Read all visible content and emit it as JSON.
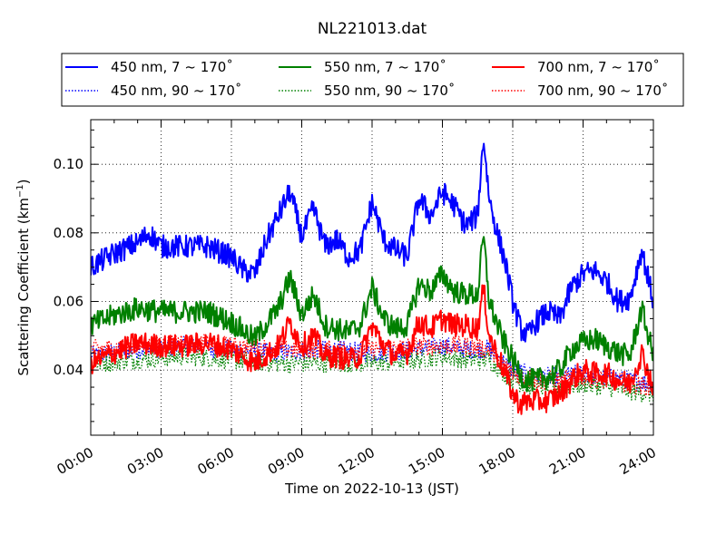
{
  "chart_data": {
    "type": "line",
    "title": "NL221013.dat",
    "xlabel": "Time on 2022-10-13 (JST)",
    "ylabel_main": "Scattering Coefficient (km",
    "ylabel_sup": "−1",
    "ylabel_close": ")",
    "xlim": [
      "00:00",
      "24:00"
    ],
    "ylim": [
      0.021,
      0.113
    ],
    "x_ticks": [
      "00:00",
      "03:00",
      "06:00",
      "09:00",
      "12:00",
      "15:00",
      "18:00",
      "21:00",
      "24:00"
    ],
    "y_ticks": [
      "0.04",
      "0.06",
      "0.08",
      "0.10"
    ],
    "grid": true,
    "legend_position": "top, above plot",
    "series": [
      {
        "name": "450 nm, 7 ~ 170˚",
        "color": "#0000ff",
        "style": "solid",
        "x": [
          "00:00",
          "01:00",
          "02:00",
          "02:30",
          "03:00",
          "04:00",
          "05:00",
          "06:00",
          "06:30",
          "07:00",
          "07:30",
          "08:00",
          "08:30",
          "09:00",
          "09:30",
          "10:00",
          "10:30",
          "11:00",
          "11:30",
          "12:00",
          "12:30",
          "13:00",
          "13:30",
          "14:00",
          "14:30",
          "15:00",
          "15:30",
          "16:00",
          "16:30",
          "16:45",
          "17:00",
          "17:20",
          "17:40",
          "18:00",
          "18:20",
          "18:40",
          "19:00",
          "19:30",
          "20:00",
          "20:30",
          "21:00",
          "21:30",
          "22:00",
          "22:30",
          "23:00",
          "23:30",
          "24:00"
        ],
        "values": [
          0.07,
          0.074,
          0.077,
          0.08,
          0.076,
          0.076,
          0.076,
          0.073,
          0.069,
          0.068,
          0.078,
          0.085,
          0.092,
          0.079,
          0.087,
          0.076,
          0.078,
          0.073,
          0.075,
          0.089,
          0.078,
          0.075,
          0.073,
          0.09,
          0.085,
          0.092,
          0.088,
          0.082,
          0.085,
          0.108,
          0.09,
          0.08,
          0.072,
          0.06,
          0.052,
          0.05,
          0.054,
          0.057,
          0.055,
          0.064,
          0.068,
          0.069,
          0.066,
          0.06,
          0.061,
          0.075,
          0.06
        ]
      },
      {
        "name": "450 nm, 90 ~ 170˚",
        "color": "#0000ff",
        "style": "dotted",
        "x": [
          "00:00",
          "02:00",
          "04:00",
          "06:00",
          "08:00",
          "10:00",
          "12:00",
          "14:00",
          "15:00",
          "16:00",
          "17:00",
          "18:00",
          "19:00",
          "20:00",
          "21:00",
          "22:00",
          "23:00",
          "24:00"
        ],
        "values": [
          0.044,
          0.046,
          0.047,
          0.046,
          0.045,
          0.046,
          0.045,
          0.046,
          0.047,
          0.046,
          0.046,
          0.04,
          0.038,
          0.038,
          0.039,
          0.038,
          0.037,
          0.036
        ]
      },
      {
        "name": "550 nm, 7 ~ 170˚",
        "color": "#008000",
        "style": "solid",
        "x": [
          "00:00",
          "01:00",
          "02:00",
          "03:00",
          "04:00",
          "05:00",
          "06:00",
          "07:00",
          "08:00",
          "08:30",
          "09:00",
          "09:30",
          "10:00",
          "10:30",
          "11:00",
          "11:30",
          "12:00",
          "12:30",
          "13:00",
          "13:30",
          "14:00",
          "14:30",
          "15:00",
          "15:30",
          "16:00",
          "16:30",
          "16:45",
          "17:00",
          "17:30",
          "18:00",
          "18:30",
          "19:00",
          "19:30",
          "20:00",
          "20:30",
          "21:00",
          "21:30",
          "22:00",
          "22:30",
          "23:00",
          "23:30",
          "24:00"
        ],
        "values": [
          0.053,
          0.056,
          0.058,
          0.057,
          0.057,
          0.057,
          0.054,
          0.049,
          0.058,
          0.067,
          0.056,
          0.062,
          0.053,
          0.052,
          0.051,
          0.053,
          0.064,
          0.055,
          0.052,
          0.053,
          0.065,
          0.063,
          0.068,
          0.063,
          0.062,
          0.062,
          0.079,
          0.06,
          0.05,
          0.043,
          0.037,
          0.037,
          0.038,
          0.04,
          0.046,
          0.048,
          0.049,
          0.047,
          0.045,
          0.044,
          0.058,
          0.044
        ]
      },
      {
        "name": "550 nm, 90 ~ 170˚",
        "color": "#008000",
        "style": "dotted",
        "x": [
          "00:00",
          "02:00",
          "04:00",
          "06:00",
          "08:00",
          "10:00",
          "12:00",
          "14:00",
          "15:00",
          "16:00",
          "17:00",
          "18:00",
          "19:00",
          "20:00",
          "21:00",
          "22:00",
          "23:00",
          "24:00"
        ],
        "values": [
          0.042,
          0.043,
          0.044,
          0.043,
          0.042,
          0.042,
          0.042,
          0.043,
          0.044,
          0.043,
          0.043,
          0.037,
          0.035,
          0.035,
          0.036,
          0.035,
          0.034,
          0.033
        ]
      },
      {
        "name": "700 nm, 7 ~ 170˚",
        "color": "#ff0000",
        "style": "solid",
        "x": [
          "00:00",
          "01:00",
          "02:00",
          "03:00",
          "04:00",
          "05:00",
          "06:00",
          "07:00",
          "08:00",
          "08:30",
          "09:00",
          "09:30",
          "10:00",
          "10:30",
          "11:00",
          "11:30",
          "12:00",
          "12:30",
          "13:00",
          "13:30",
          "14:00",
          "14:30",
          "15:00",
          "15:30",
          "16:00",
          "16:30",
          "16:45",
          "17:00",
          "17:30",
          "18:00",
          "18:20",
          "18:40",
          "19:00",
          "19:30",
          "20:00",
          "20:30",
          "21:00",
          "21:30",
          "22:00",
          "22:30",
          "23:00",
          "23:30",
          "24:00"
        ],
        "values": [
          0.042,
          0.045,
          0.048,
          0.047,
          0.047,
          0.048,
          0.046,
          0.042,
          0.047,
          0.054,
          0.047,
          0.05,
          0.044,
          0.044,
          0.043,
          0.044,
          0.053,
          0.047,
          0.044,
          0.045,
          0.054,
          0.052,
          0.055,
          0.053,
          0.053,
          0.052,
          0.064,
          0.05,
          0.042,
          0.033,
          0.03,
          0.031,
          0.031,
          0.031,
          0.033,
          0.037,
          0.04,
          0.039,
          0.039,
          0.037,
          0.036,
          0.045,
          0.035
        ]
      },
      {
        "name": "700 nm, 90 ~ 170˚",
        "color": "#ff0000",
        "style": "dotted",
        "x": [
          "00:00",
          "02:00",
          "04:00",
          "06:00",
          "08:00",
          "10:00",
          "12:00",
          "14:00",
          "15:00",
          "16:00",
          "17:00",
          "18:00",
          "19:00",
          "20:00",
          "21:00",
          "22:00",
          "23:00",
          "24:00"
        ],
        "values": [
          0.046,
          0.047,
          0.048,
          0.047,
          0.046,
          0.046,
          0.046,
          0.047,
          0.047,
          0.047,
          0.046,
          0.039,
          0.037,
          0.037,
          0.038,
          0.037,
          0.036,
          0.035
        ]
      }
    ]
  }
}
